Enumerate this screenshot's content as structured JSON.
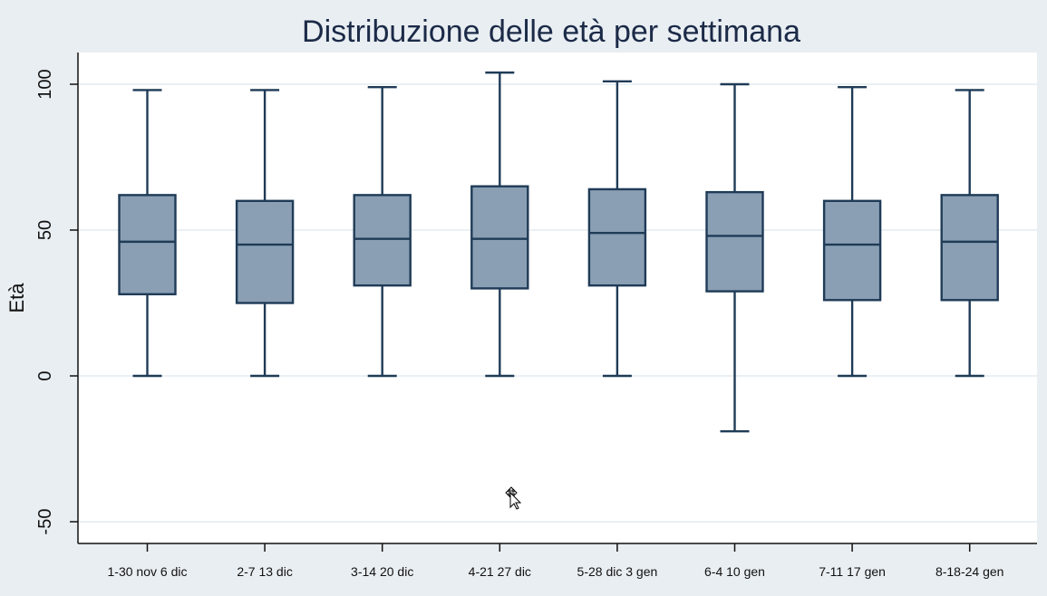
{
  "chart_data": {
    "type": "box",
    "title": "Distribuzione delle età per settimana",
    "xlabel": "",
    "ylabel": "Età",
    "ylim": [
      -60,
      110
    ],
    "yticks": [
      -50,
      0,
      50,
      100
    ],
    "grid": true,
    "categories": [
      "1-30 nov 6 dic",
      "2-7 13 dic",
      "3-14 20 dic",
      "4-21 27 dic",
      "5-28 dic  3 gen",
      "6-4 10 gen",
      "7-11 17 gen",
      "8-18-24 gen"
    ],
    "boxes": [
      {
        "min": 0,
        "q1": 28,
        "median": 46,
        "q3": 62,
        "max": 98
      },
      {
        "min": 0,
        "q1": 25,
        "median": 45,
        "q3": 60,
        "max": 98
      },
      {
        "min": 0,
        "q1": 31,
        "median": 47,
        "q3": 62,
        "max": 99
      },
      {
        "min": 0,
        "q1": 30,
        "median": 47,
        "q3": 65,
        "max": 104
      },
      {
        "min": 0,
        "q1": 31,
        "median": 49,
        "q3": 64,
        "max": 101
      },
      {
        "min": -19,
        "q1": 29,
        "median": 48,
        "q3": 63,
        "max": 100
      },
      {
        "min": 0,
        "q1": 26,
        "median": 45,
        "q3": 60,
        "max": 99
      },
      {
        "min": 0,
        "q1": 26,
        "median": 46,
        "q3": 62,
        "max": 98
      }
    ],
    "colors": {
      "box_fill": "#8a9fb3",
      "box_edge": "#1f3b57",
      "background": "#e9eef2"
    }
  }
}
